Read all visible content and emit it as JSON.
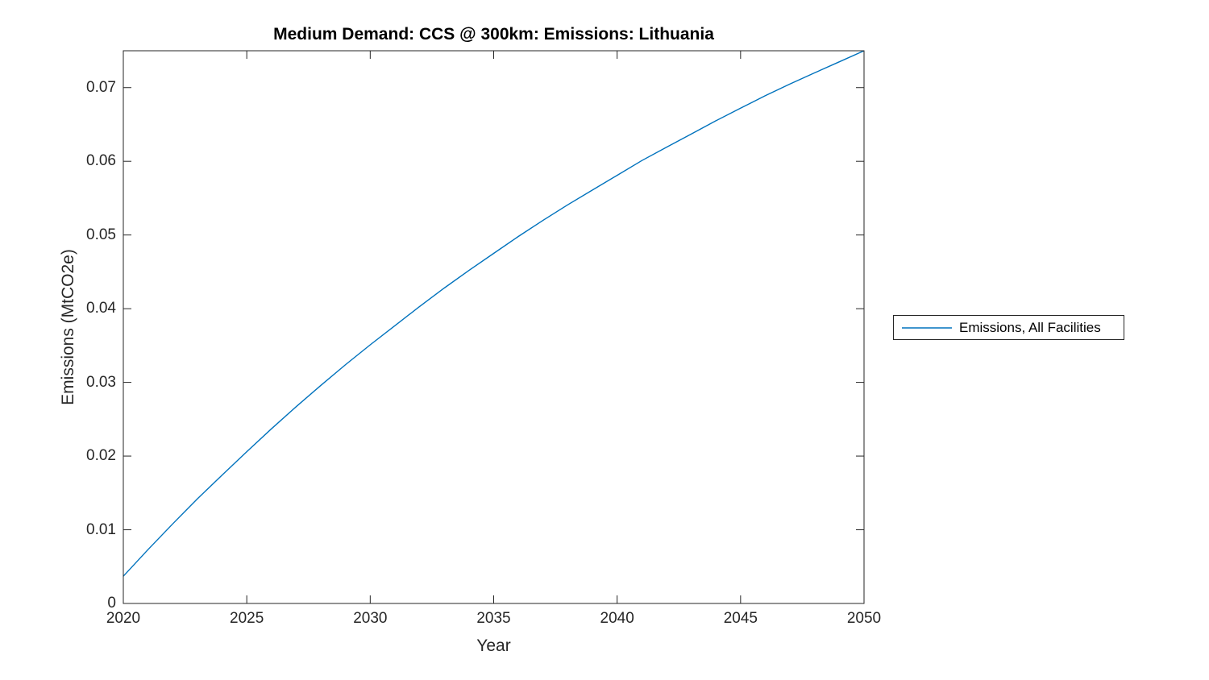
{
  "window": {
    "background": "#ffffff"
  },
  "chart_data": {
    "type": "line",
    "title": "Medium Demand: CCS @ 300km: Emissions: Lithuania",
    "xlabel": "Year",
    "ylabel": "Emissions (MtCO2e)",
    "xlim": [
      2020,
      2050
    ],
    "ylim": [
      0,
      0.075
    ],
    "x_ticks": [
      2020,
      2025,
      2030,
      2035,
      2040,
      2045,
      2050
    ],
    "y_ticks": [
      0,
      0.01,
      0.02,
      0.03,
      0.04,
      0.05,
      0.06,
      0.07
    ],
    "grid": false,
    "axis_color": "#262626",
    "legend": {
      "position": "outside-right",
      "entries": [
        {
          "label": "Emissions, All Facilities",
          "color": "#0072BD"
        }
      ]
    },
    "series": [
      {
        "name": "Emissions, All Facilities",
        "color": "#0072BD",
        "x": [
          2020,
          2021,
          2022,
          2023,
          2024,
          2025,
          2026,
          2027,
          2028,
          2029,
          2030,
          2031,
          2032,
          2033,
          2034,
          2035,
          2036,
          2037,
          2038,
          2039,
          2040,
          2041,
          2042,
          2043,
          2044,
          2045,
          2046,
          2047,
          2048,
          2049,
          2050
        ],
        "values": [
          0.0037,
          0.0073,
          0.0108,
          0.0142,
          0.0174,
          0.0206,
          0.0237,
          0.0267,
          0.0296,
          0.0324,
          0.0351,
          0.0377,
          0.0403,
          0.0428,
          0.0452,
          0.0475,
          0.0498,
          0.052,
          0.0541,
          0.0561,
          0.0581,
          0.0601,
          0.0619,
          0.0637,
          0.0655,
          0.0672,
          0.0689,
          0.0705,
          0.072,
          0.0735,
          0.075
        ]
      }
    ]
  }
}
